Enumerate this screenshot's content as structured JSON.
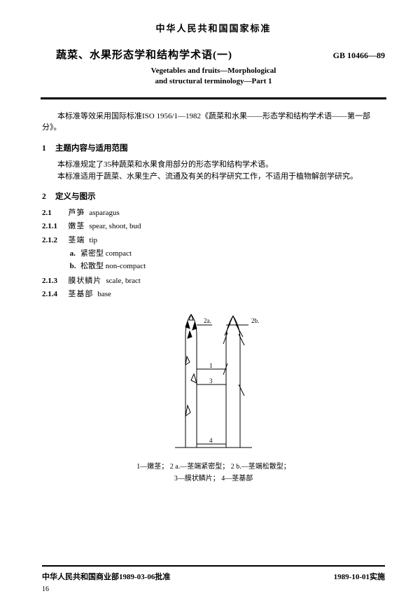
{
  "header": "中华人民共和国国家标准",
  "title_cn": "蔬菜、水果形态学和结构学术语(一)",
  "gb_code": "GB 10466—89",
  "title_en_line1": "Vegetables and fruits—Morphological",
  "title_en_line2": "and structural terminology—Part 1",
  "intro": "本标准等效采用国际标准ISO 1956/1—1982《蔬菜和水果——形态学和结构学术语——第一部分》。",
  "sec1": {
    "num": "1",
    "title": "主题内容与适用范围"
  },
  "sec1_p1": "本标准规定了35种蔬菜和水果食用部分的形态学和结构学术语。",
  "sec1_p2": "本标准适用于蔬菜、水果生产、流通及有关的科学研究工作，不适用于植物解剖学研究。",
  "sec2": {
    "num": "2",
    "title": "定义与图示"
  },
  "defs": [
    {
      "num": "2.1",
      "cn": "芦笋",
      "en": "asparagus"
    },
    {
      "num": "2.1.1",
      "cn": "嫩茎",
      "en": "spear, shoot, bud"
    },
    {
      "num": "2.1.2",
      "cn": "茎端",
      "en": "tip",
      "subs": [
        {
          "lbl": "a.",
          "cn": "紧密型",
          "en": "compact"
        },
        {
          "lbl": "b.",
          "cn": "松散型",
          "en": "non-compact"
        }
      ]
    },
    {
      "num": "2.1.3",
      "cn": "膜状鳞片",
      "en": "scale, bract"
    },
    {
      "num": "2.1.4",
      "cn": "茎基部",
      "en": "base"
    }
  ],
  "figure": {
    "labels": {
      "l2a": "2a.",
      "l2b": "2b.",
      "l1": "1",
      "l3": "3",
      "l4": "4"
    },
    "caption_line1": "1—嫩茎； 2 a.—茎端紧密型； 2 b.—茎端松散型；",
    "caption_line2": "3—膜状鳞片； 4—茎基部"
  },
  "footer": {
    "left": "中华人民共和国商业部1989-03-06批准",
    "right": "1989-10-01实施"
  },
  "page_number": "16"
}
